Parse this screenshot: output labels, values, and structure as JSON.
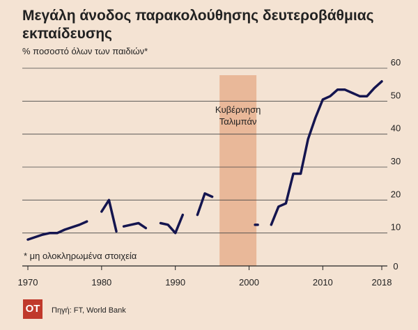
{
  "chart_data": {
    "type": "line",
    "title": "Μεγάλη άνοδος παρακολούθησης δευτεροβάθμιας εκπαίδευσης",
    "subtitle": "% ποσοστό όλων των παιδιών*",
    "annotation": "Κυβέρνηση\nΤαλιμπάν",
    "shaded_range": [
      1996,
      2001
    ],
    "footnote": "* μη ολοκληρωμένα στοιχεία",
    "source": "Πηγή: FT, World Bank",
    "logo": "OT",
    "x_ticks": [
      1970,
      1980,
      1990,
      2000,
      2010,
      2018
    ],
    "y_ticks": [
      0,
      10,
      20,
      30,
      40,
      50,
      60
    ],
    "xlim": [
      1970,
      2018
    ],
    "ylim": [
      0,
      60
    ],
    "grid": "horizontal",
    "y_axis_side": "right",
    "line_color": "#14154f",
    "shade_color": "#e9b899",
    "segments": [
      [
        [
          1970,
          8
        ],
        [
          1972,
          9.5
        ],
        [
          1973,
          10
        ],
        [
          1974,
          10
        ],
        [
          1975,
          11
        ],
        [
          1977,
          12.5
        ],
        [
          1978,
          13.5
        ]
      ],
      [
        [
          1980,
          16.5
        ],
        [
          1981,
          20
        ],
        [
          1982,
          10.5
        ]
      ],
      [
        [
          1983,
          12
        ],
        [
          1984,
          12.5
        ],
        [
          1985,
          13
        ],
        [
          1986,
          11.5
        ]
      ],
      [
        [
          1988,
          13
        ],
        [
          1989,
          12.5
        ],
        [
          1990,
          10
        ],
        [
          1991,
          15.5
        ]
      ],
      [
        [
          1993,
          15.5
        ],
        [
          1994,
          22
        ],
        [
          1995,
          21
        ]
      ],
      [
        [
          2001,
          12.5
        ]
      ],
      [
        [
          2003,
          12.5
        ],
        [
          2004,
          18
        ],
        [
          2005,
          19
        ],
        [
          2006,
          28
        ],
        [
          2007,
          28
        ],
        [
          2008,
          38.5
        ],
        [
          2009,
          45
        ],
        [
          2010,
          50.5
        ],
        [
          2011,
          51.5
        ],
        [
          2012,
          53.5
        ],
        [
          2013,
          53.5
        ],
        [
          2014,
          52.5
        ],
        [
          2015,
          51.5
        ],
        [
          2016,
          51.5
        ],
        [
          2017,
          54
        ],
        [
          2018,
          56
        ]
      ]
    ]
  }
}
